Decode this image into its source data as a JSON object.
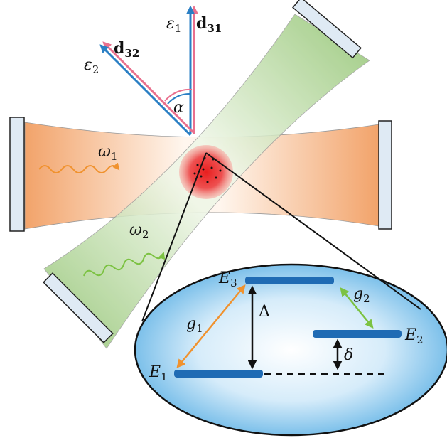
{
  "polarization": {
    "epsilon_1": {
      "symbol": "ε",
      "sub": "1"
    },
    "d_31": {
      "symbol": "d",
      "sub": "31"
    },
    "d_32": {
      "symbol": "d",
      "sub": "32"
    },
    "epsilon_2": {
      "symbol": "ε",
      "sub": "2"
    },
    "angle": "α"
  },
  "fields": {
    "omega_1": {
      "symbol": "ω",
      "sub": "1"
    },
    "omega_2": {
      "symbol": "ω",
      "sub": "2"
    }
  },
  "levels": {
    "E3": {
      "symbol": "E",
      "sub": "3"
    },
    "E2": {
      "symbol": "E",
      "sub": "2"
    },
    "E1": {
      "symbol": "E",
      "sub": "1"
    }
  },
  "couplings": {
    "g1": {
      "symbol": "g",
      "sub": "1"
    },
    "g2": {
      "symbol": "g",
      "sub": "2"
    },
    "Delta": "Δ",
    "delta": "δ"
  }
}
